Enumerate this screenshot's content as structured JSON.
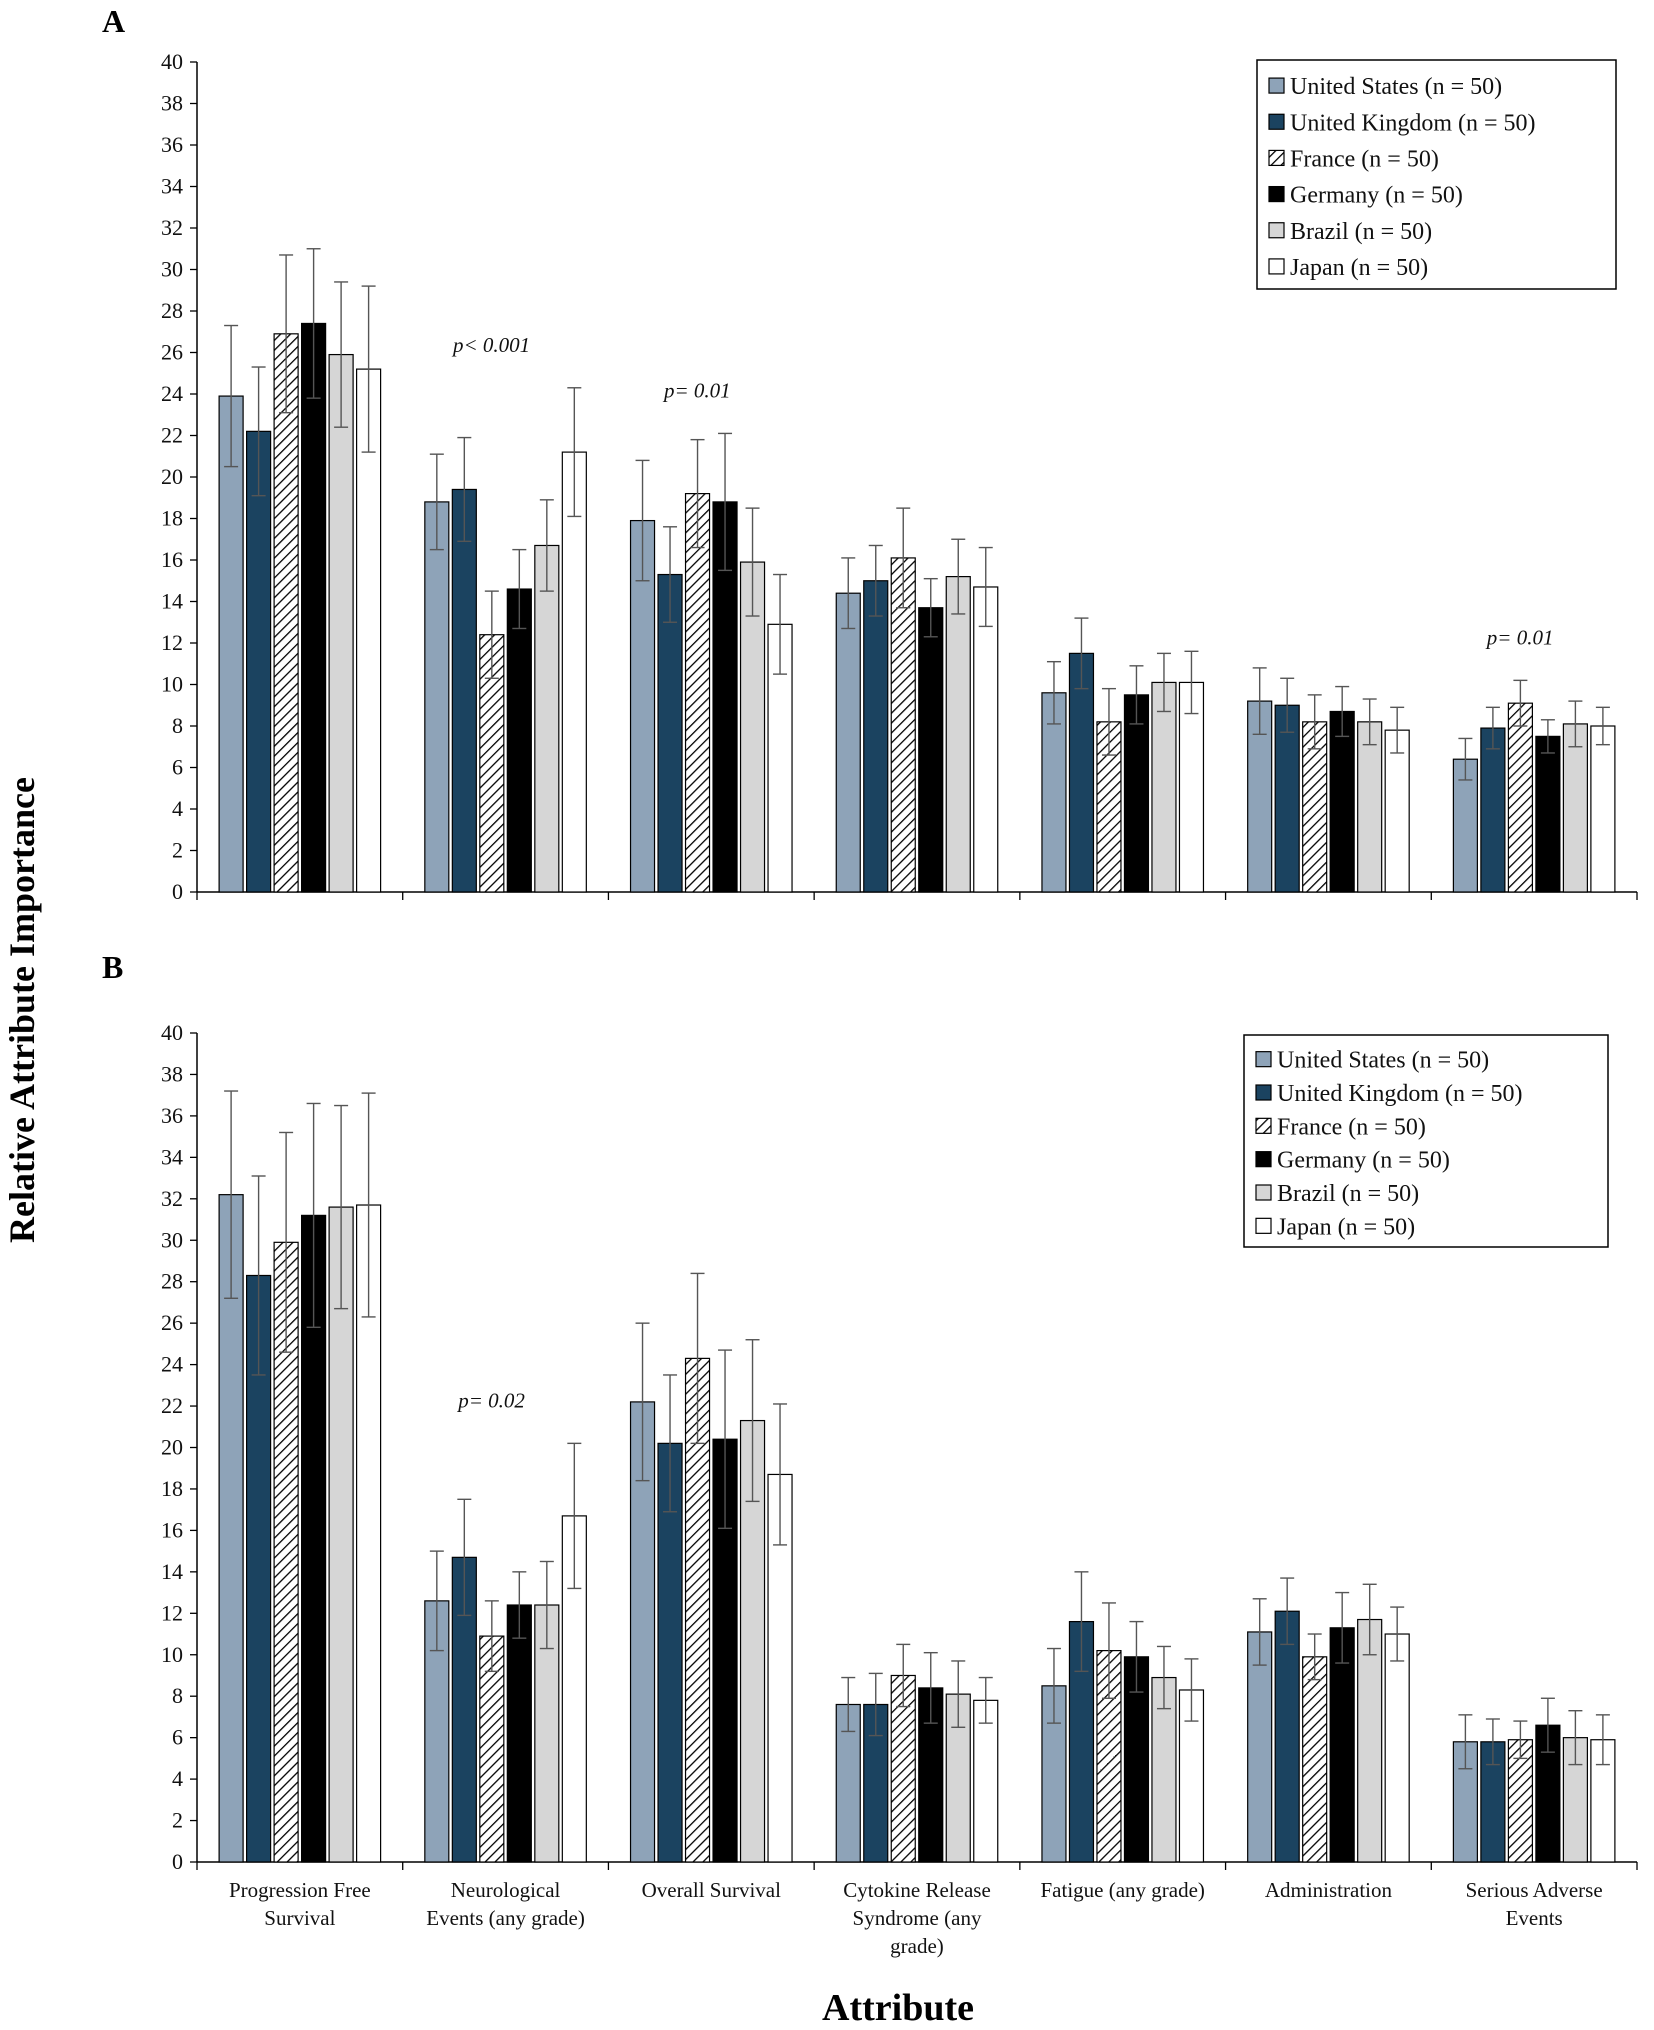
{
  "chart_data": [
    {
      "panel": "A",
      "type": "bar",
      "ylabel": "Relative Attribute Importance",
      "xlabel": "Attribute",
      "ylim": [
        0,
        40
      ],
      "yticks": [
        0,
        2,
        4,
        6,
        8,
        10,
        12,
        14,
        16,
        18,
        20,
        22,
        24,
        26,
        28,
        30,
        32,
        34,
        36,
        38,
        40
      ],
      "categories": [
        "Progression Free Survival",
        "Neurological Events (any grade)",
        "Overall Survival",
        "Cytokine Release Syndrome (any grade)",
        "Fatigue (any grade)",
        "Administration",
        "Serious Adverse Events"
      ],
      "series": [
        {
          "name": "United States (n = 50)",
          "values": [
            23.9,
            18.8,
            17.9,
            14.4,
            9.6,
            9.2,
            6.4
          ],
          "err": [
            3.4,
            2.3,
            2.9,
            1.7,
            1.5,
            1.6,
            1.0
          ]
        },
        {
          "name": "United Kingdom (n = 50)",
          "values": [
            22.2,
            19.4,
            15.3,
            15.0,
            11.5,
            9.0,
            7.9
          ],
          "err": [
            3.1,
            2.5,
            2.3,
            1.7,
            1.7,
            1.3,
            1.0
          ]
        },
        {
          "name": "France (n = 50)",
          "values": [
            26.9,
            12.4,
            19.2,
            16.1,
            8.2,
            8.2,
            9.1
          ],
          "err": [
            3.8,
            2.1,
            2.6,
            2.4,
            1.6,
            1.3,
            1.1
          ]
        },
        {
          "name": "Germany (n = 50)",
          "values": [
            27.4,
            14.6,
            18.8,
            13.7,
            9.5,
            8.7,
            7.5
          ],
          "err": [
            3.6,
            1.9,
            3.3,
            1.4,
            1.4,
            1.2,
            0.8
          ]
        },
        {
          "name": "Brazil (n = 50)",
          "values": [
            25.9,
            16.7,
            15.9,
            15.2,
            10.1,
            8.2,
            8.1
          ],
          "err": [
            3.5,
            2.2,
            2.6,
            1.8,
            1.4,
            1.1,
            1.1
          ]
        },
        {
          "name": "Japan (n = 50)",
          "values": [
            25.2,
            21.2,
            12.9,
            14.7,
            10.1,
            7.8,
            8.0
          ],
          "err": [
            4.0,
            3.1,
            2.4,
            1.9,
            1.5,
            1.1,
            0.9
          ]
        }
      ],
      "annotations": [
        {
          "text": "p< 0.001",
          "category_index": 1
        },
        {
          "text": "p= 0.01",
          "category_index": 2
        },
        {
          "text": "p= 0.01",
          "category_index": 6
        }
      ],
      "legend": "top-right"
    },
    {
      "panel": "B",
      "type": "bar",
      "ylabel": "Relative Attribute Importance",
      "xlabel": "Attribute",
      "ylim": [
        0,
        40
      ],
      "yticks": [
        0,
        2,
        4,
        6,
        8,
        10,
        12,
        14,
        16,
        18,
        20,
        22,
        24,
        26,
        28,
        30,
        32,
        34,
        36,
        38,
        40
      ],
      "categories": [
        "Progression Free Survival",
        "Neurological Events (any grade)",
        "Overall Survival",
        "Cytokine Release Syndrome (any grade)",
        "Fatigue (any grade)",
        "Administration",
        "Serious Adverse Events"
      ],
      "series": [
        {
          "name": "United States (n = 50)",
          "values": [
            32.2,
            12.6,
            22.2,
            7.6,
            8.5,
            11.1,
            5.8
          ],
          "err": [
            5.0,
            2.4,
            3.8,
            1.3,
            1.8,
            1.6,
            1.3
          ]
        },
        {
          "name": "United Kingdom (n = 50)",
          "values": [
            28.3,
            14.7,
            20.2,
            7.6,
            11.6,
            12.1,
            5.8
          ],
          "err": [
            4.8,
            2.8,
            3.3,
            1.5,
            2.4,
            1.6,
            1.1
          ]
        },
        {
          "name": "France (n = 50)",
          "values": [
            29.9,
            10.9,
            24.3,
            9.0,
            10.2,
            9.9,
            5.9
          ],
          "err": [
            5.3,
            1.7,
            4.1,
            1.5,
            2.3,
            1.1,
            0.9
          ]
        },
        {
          "name": "Germany (n = 50)",
          "values": [
            31.2,
            12.4,
            20.4,
            8.4,
            9.9,
            11.3,
            6.6
          ],
          "err": [
            5.4,
            1.6,
            4.3,
            1.7,
            1.7,
            1.7,
            1.3
          ]
        },
        {
          "name": "Brazil (n = 50)",
          "values": [
            31.6,
            12.4,
            21.3,
            8.1,
            8.9,
            11.7,
            6.0
          ],
          "err": [
            4.9,
            2.1,
            3.9,
            1.6,
            1.5,
            1.7,
            1.3
          ]
        },
        {
          "name": "Japan (n = 50)",
          "values": [
            31.7,
            16.7,
            18.7,
            7.8,
            8.3,
            11.0,
            5.9
          ],
          "err": [
            5.4,
            3.5,
            3.4,
            1.1,
            1.5,
            1.3,
            1.2
          ]
        }
      ],
      "annotations": [
        {
          "text": "p= 0.02",
          "category_index": 1
        }
      ],
      "legend": "top-right"
    }
  ],
  "figure": {
    "panel_a_label": "A",
    "panel_b_label": "B",
    "ylabel": "Relative Attribute Importance",
    "xlabel": "Attribute",
    "x_labels_lines": [
      [
        "Progression Free",
        "Survival"
      ],
      [
        "Neurological",
        "Events (any grade)"
      ],
      [
        "Overall Survival"
      ],
      [
        "Cytokine Release",
        "Syndrome (any",
        "grade)"
      ],
      [
        "Fatigue (any grade)"
      ],
      [
        "Administration"
      ],
      [
        "Serious Adverse",
        "Events"
      ]
    ]
  },
  "styles": {
    "series_colors": [
      "#8ea3b8",
      "#1b4360",
      "hatch",
      "#000000",
      "#d6d6d6",
      "#ffffff"
    ]
  }
}
